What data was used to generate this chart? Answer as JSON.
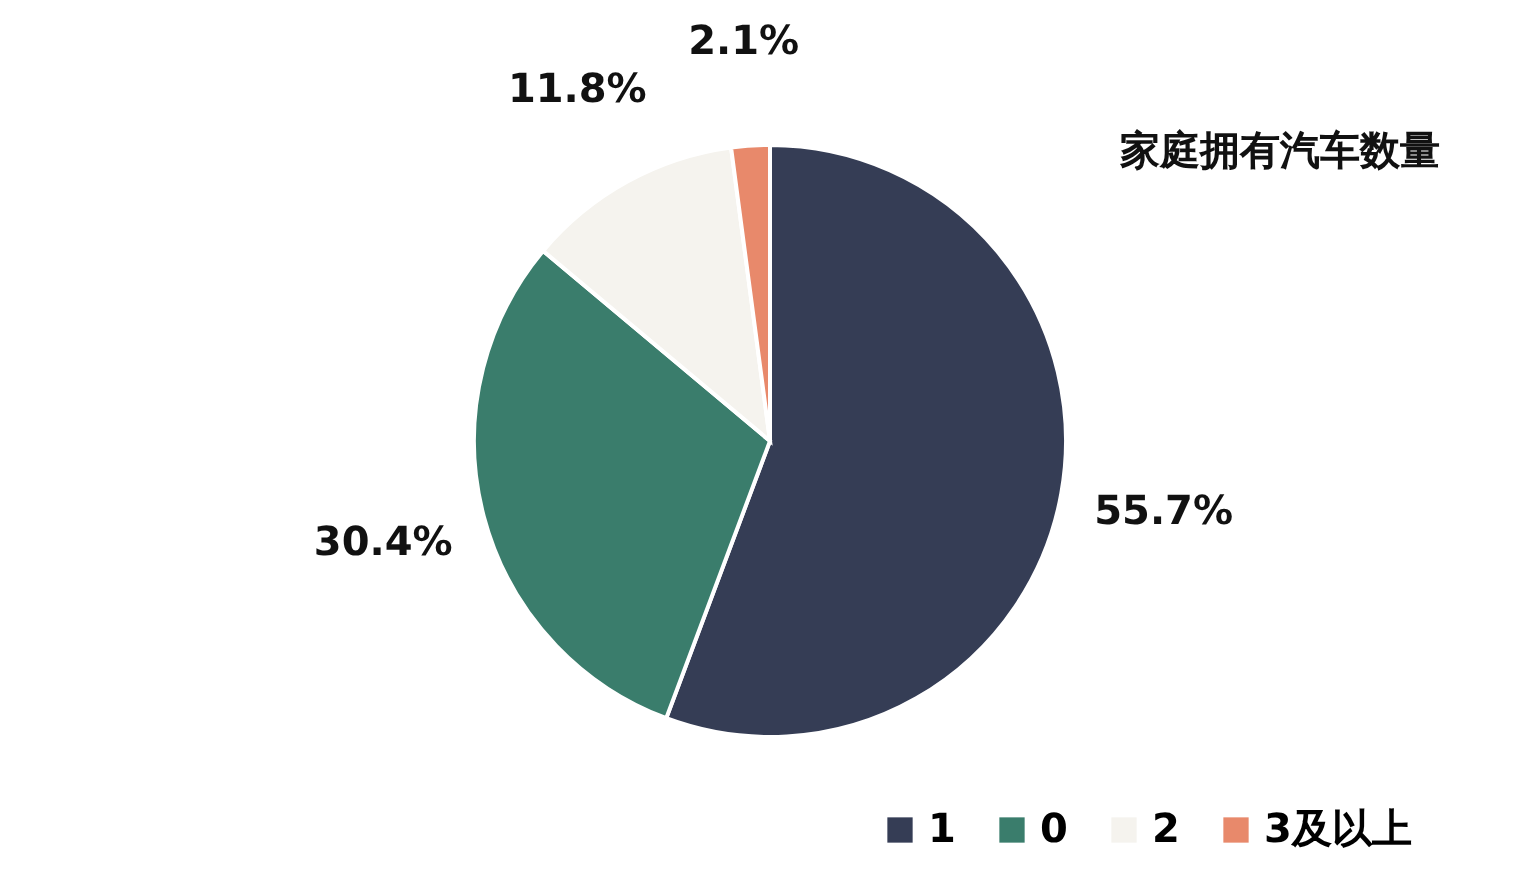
{
  "chart_data": {
    "type": "pie",
    "title": "家庭拥有汽车数量",
    "categories": [
      "1",
      "0",
      "2",
      "3及以上"
    ],
    "values": [
      55.7,
      30.4,
      11.8,
      2.1
    ],
    "colors": [
      "#353d55",
      "#3a7d6c",
      "#f5f3ee",
      "#e8896b"
    ],
    "value_labels": [
      "55.7%",
      "30.4%",
      "11.8%",
      "2.1%"
    ],
    "legend": "bottom right"
  }
}
